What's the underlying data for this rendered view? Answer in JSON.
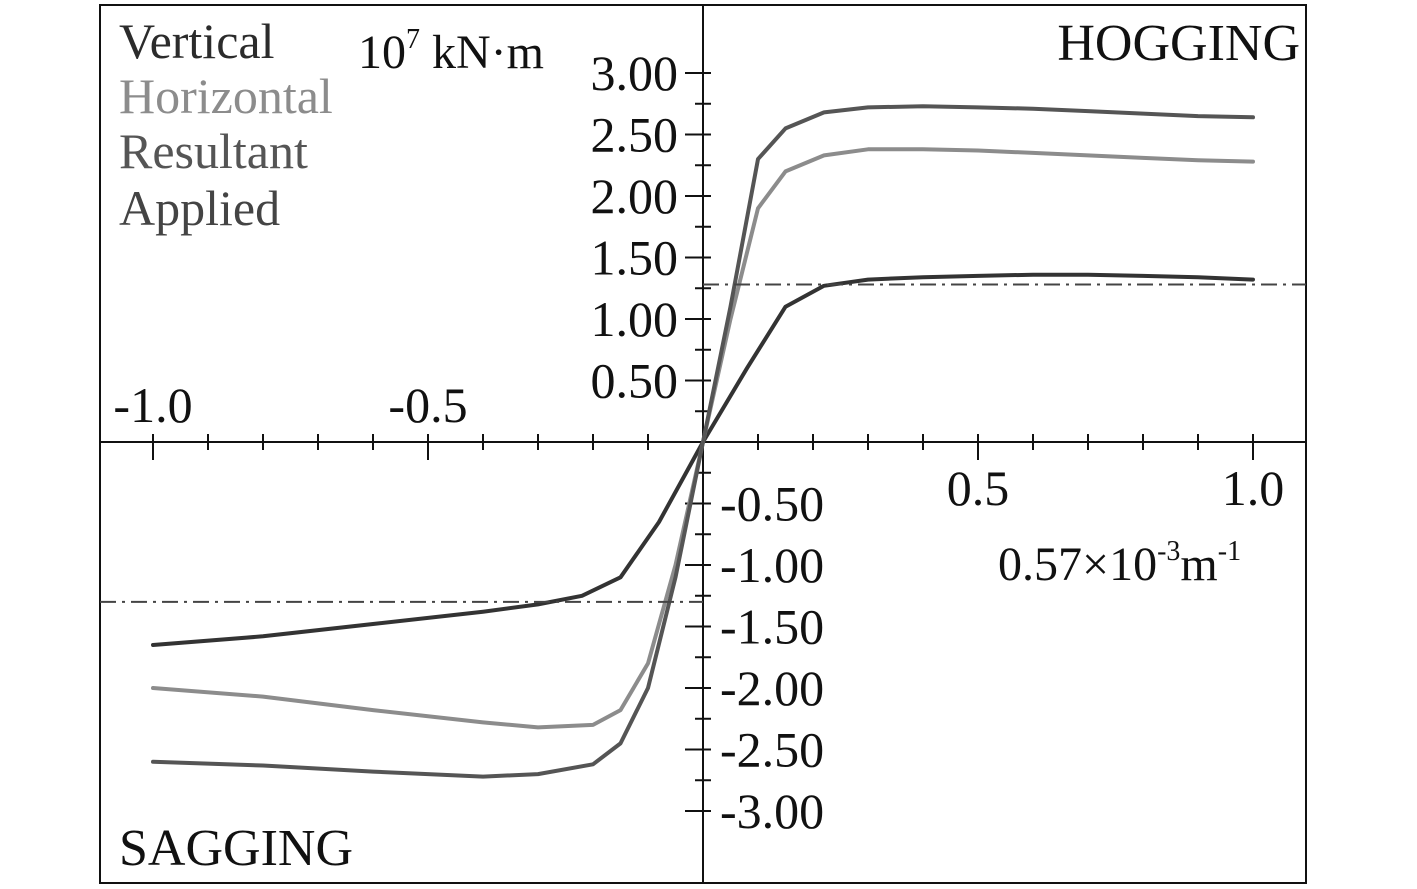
{
  "chart_data": {
    "type": "line",
    "title": "",
    "xlabel": "0.57×10⁻³m⁻¹",
    "xlabel_parts": {
      "base": "0.57×10",
      "exp1": "-3",
      "unit": "m",
      "exp2": "-1"
    },
    "ylabel": "10⁷ kN·m",
    "ylabel_parts": {
      "base": "10",
      "exp": "7",
      "unit": " kN·m"
    },
    "xlim": [
      -1.1,
      1.1
    ],
    "ylim": [
      -3.5,
      3.5
    ],
    "x_tick_labels": [
      {
        "value": -1.0,
        "label": "-1.0"
      },
      {
        "value": -0.5,
        "label": "-0.5"
      },
      {
        "value": 0.5,
        "label": "0.5"
      },
      {
        "value": 1.0,
        "label": "1.0"
      }
    ],
    "y_tick_labels": [
      {
        "value": 3.0,
        "label": "3.00"
      },
      {
        "value": 2.5,
        "label": "2.50"
      },
      {
        "value": 2.0,
        "label": "2.00"
      },
      {
        "value": 1.5,
        "label": "1.50"
      },
      {
        "value": 1.0,
        "label": "1.00"
      },
      {
        "value": 0.5,
        "label": "0.50"
      },
      {
        "value": -0.5,
        "label": "-0.50"
      },
      {
        "value": -1.0,
        "label": "-1.00"
      },
      {
        "value": -1.5,
        "label": "-1.50"
      },
      {
        "value": -2.0,
        "label": "-2.00"
      },
      {
        "value": -2.5,
        "label": "-2.50"
      },
      {
        "value": -3.0,
        "label": "-3.00"
      }
    ],
    "annotations": {
      "top_right": "HOGGING",
      "bottom_left": "SAGGING"
    },
    "legend": {
      "position": "top-left",
      "entries": [
        "Vertical",
        "Horizontal",
        "Resultant",
        "Applied"
      ]
    },
    "series": [
      {
        "name": "Vertical",
        "color": "#333333",
        "x": [
          -1.0,
          -0.8,
          -0.6,
          -0.4,
          -0.3,
          -0.22,
          -0.15,
          -0.08,
          0.0,
          0.08,
          0.15,
          0.22,
          0.3,
          0.4,
          0.5,
          0.6,
          0.7,
          0.8,
          0.9,
          1.0
        ],
        "y": [
          -1.65,
          -1.58,
          -1.48,
          -1.38,
          -1.32,
          -1.25,
          -1.1,
          -0.65,
          0.0,
          0.6,
          1.1,
          1.27,
          1.32,
          1.34,
          1.35,
          1.36,
          1.36,
          1.35,
          1.34,
          1.32
        ]
      },
      {
        "name": "Horizontal",
        "color": "#8c8c8c",
        "x": [
          -1.0,
          -0.8,
          -0.6,
          -0.4,
          -0.3,
          -0.2,
          -0.15,
          -0.1,
          -0.05,
          0.0,
          0.05,
          0.1,
          0.15,
          0.22,
          0.3,
          0.4,
          0.5,
          0.6,
          0.7,
          0.8,
          0.9,
          1.0
        ],
        "y": [
          -2.0,
          -2.07,
          -2.18,
          -2.28,
          -2.32,
          -2.3,
          -2.18,
          -1.8,
          -1.0,
          0.0,
          1.0,
          1.9,
          2.2,
          2.33,
          2.38,
          2.38,
          2.37,
          2.35,
          2.33,
          2.31,
          2.29,
          2.28
        ]
      },
      {
        "name": "Resultant",
        "color": "#555555",
        "x": [
          -1.0,
          -0.8,
          -0.6,
          -0.4,
          -0.3,
          -0.2,
          -0.15,
          -0.1,
          -0.05,
          0.0,
          0.05,
          0.1,
          0.15,
          0.22,
          0.3,
          0.4,
          0.5,
          0.6,
          0.7,
          0.8,
          0.9,
          1.0
        ],
        "y": [
          -2.6,
          -2.63,
          -2.68,
          -2.72,
          -2.7,
          -2.62,
          -2.45,
          -2.0,
          -1.1,
          0.0,
          1.1,
          2.3,
          2.55,
          2.68,
          2.72,
          2.73,
          2.72,
          2.71,
          2.69,
          2.67,
          2.65,
          2.64
        ]
      },
      {
        "name": "Applied",
        "color": "#444444",
        "style": "dash-dot",
        "hogging_value": 1.28,
        "sagging_value": -1.3
      }
    ]
  }
}
